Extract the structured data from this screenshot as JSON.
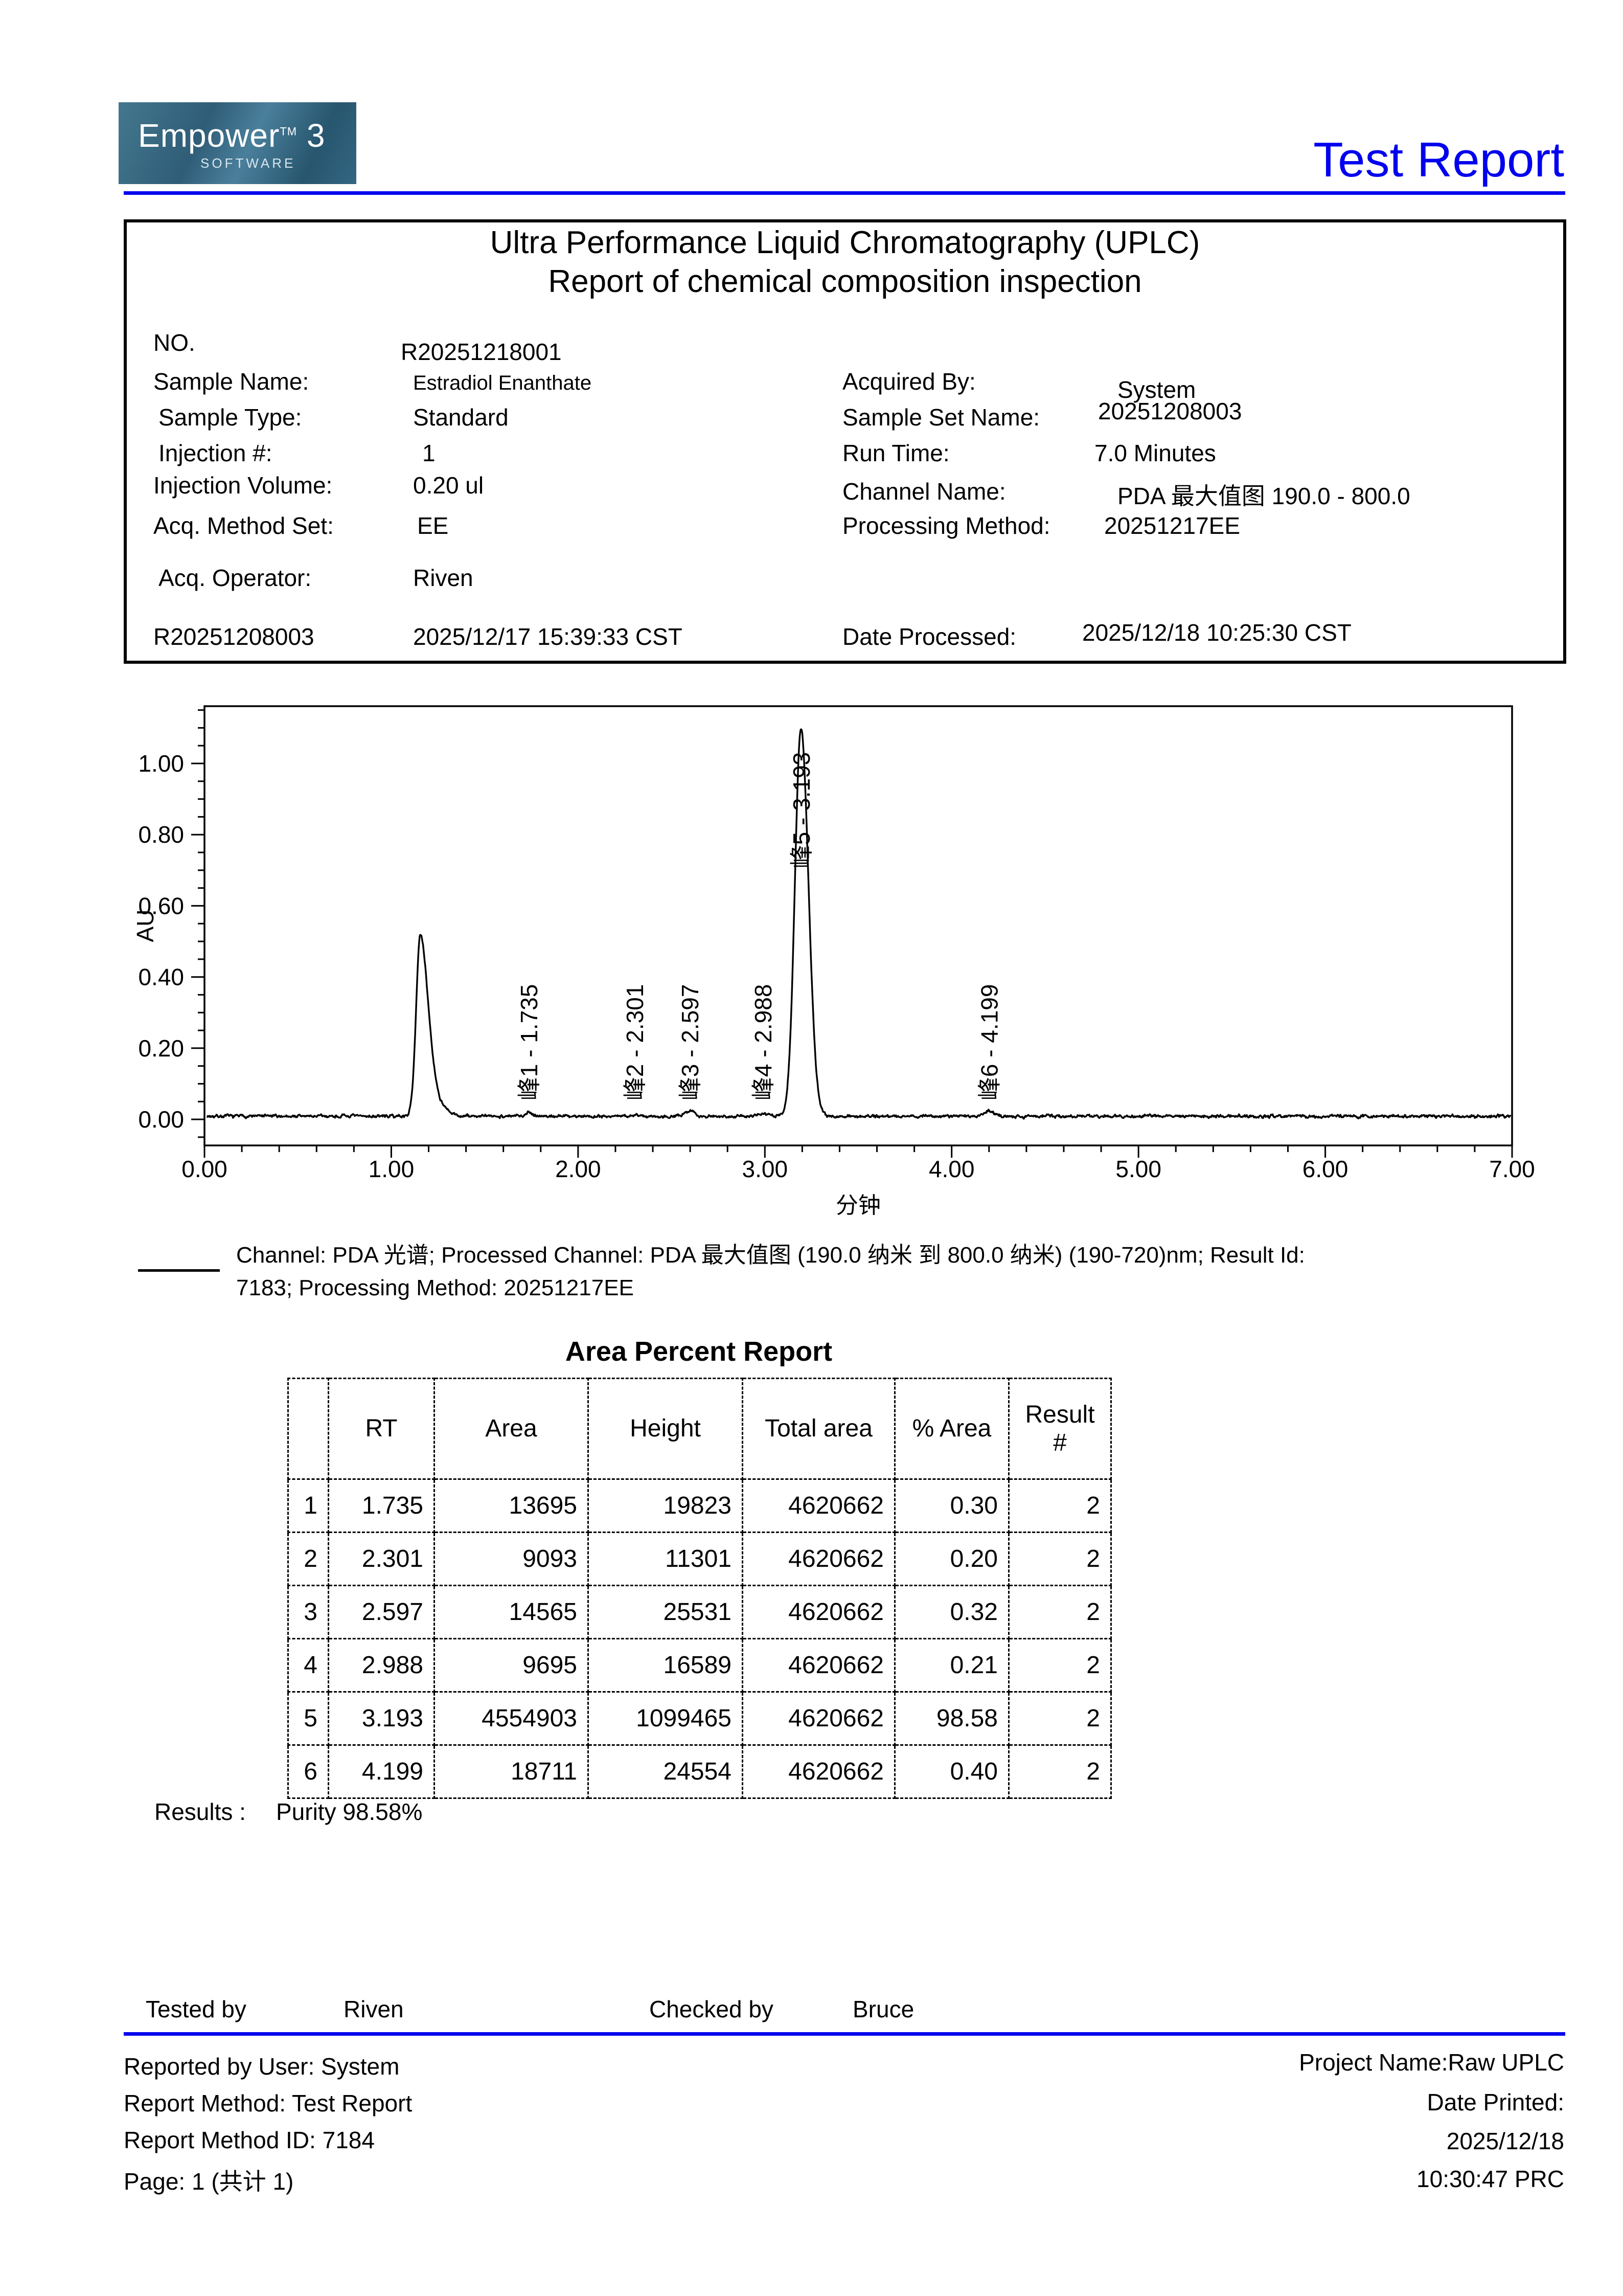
{
  "header": {
    "logo_brand": "Empower",
    "logo_tm": "TM",
    "logo_version": "3",
    "logo_subtitle": "SOFTWARE",
    "report_title": "Test Report"
  },
  "info_box": {
    "title_line1": "Ultra Performance Liquid Chromatography (UPLC)",
    "title_line2": "Report of chemical composition inspection",
    "left": [
      {
        "label": "NO.",
        "value": "R20251218001"
      },
      {
        "label": "Sample Name:",
        "value": "Estradiol Enanthate"
      },
      {
        "label": "Sample Type:",
        "value": "Standard"
      },
      {
        "label": "Injection #:",
        "value": "1"
      },
      {
        "label": "Injection Volume:",
        "value": "0.20 ul"
      },
      {
        "label": "Acq. Method Set:",
        "value": "EE"
      },
      {
        "label": "Acq. Operator:",
        "value": "Riven"
      },
      {
        "label": "R20251208003",
        "value": "2025/12/17 15:39:33 CST"
      }
    ],
    "right": [
      {
        "label": "Acquired By:",
        "value": "System"
      },
      {
        "label": "Sample Set Name:",
        "value": "20251208003"
      },
      {
        "label": "Run Time:",
        "value": "7.0 Minutes"
      },
      {
        "label": "Channel Name:",
        "value": "PDA 最大值图 190.0 - 800.0"
      },
      {
        "label": "Processing Method:",
        "value": "20251217EE"
      },
      {
        "label": "Date Processed:",
        "value": "2025/12/18 10:25:30 CST"
      }
    ]
  },
  "chart_data": {
    "type": "line",
    "title": "",
    "xlabel": "分钟",
    "ylabel": "AU",
    "xlim": [
      0.0,
      7.0
    ],
    "ylim": [
      -0.073,
      1.161
    ],
    "grid": false,
    "legend_position": "none",
    "x_major_ticks": [
      0,
      1,
      2,
      3,
      4,
      5,
      6,
      7
    ],
    "x_tick_labels": [
      "0.00",
      "1.00",
      "2.00",
      "3.00",
      "4.00",
      "5.00",
      "6.00",
      "7.00"
    ],
    "x_minor_step": 0.2,
    "y_major_ticks": [
      0.0,
      0.2,
      0.4,
      0.6,
      0.8,
      1.0
    ],
    "y_tick_labels": [
      "0.00",
      "0.20",
      "0.40",
      "0.60",
      "0.80",
      "1.00"
    ],
    "y_minor_step": 0.05,
    "baseline_au": 0.009,
    "noise_amplitude_au": 0.005,
    "unlabeled_peaks": [
      {
        "rt": 1.155,
        "height_au": 0.515,
        "sigma_l": 0.022,
        "sigma_r": 0.042,
        "note": "solvent front, not integrated"
      },
      {
        "rt": 1.235,
        "height_au": 0.045,
        "sigma_l": 0.03,
        "sigma_r": 0.05,
        "note": "solvent front shoulder"
      }
    ],
    "peaks": [
      {
        "label": "峰1 - 1.735",
        "rt": 1.735,
        "height_au": 0.0198,
        "sigma_l": 0.02,
        "sigma_r": 0.024,
        "label_base_au": 0.053
      },
      {
        "label": "峰2 - 2.301",
        "rt": 2.301,
        "height_au": 0.0113,
        "sigma_l": 0.02,
        "sigma_r": 0.024,
        "label_base_au": 0.053
      },
      {
        "label": "峰3 - 2.597",
        "rt": 2.597,
        "height_au": 0.0255,
        "sigma_l": 0.02,
        "sigma_r": 0.024,
        "label_base_au": 0.053
      },
      {
        "label": "峰4 - 2.988",
        "rt": 2.988,
        "height_au": 0.0166,
        "sigma_l": 0.02,
        "sigma_r": 0.024,
        "label_base_au": 0.053
      },
      {
        "label": "峰5 - 3.193",
        "rt": 3.193,
        "height_au": 1.0995,
        "sigma_l": 0.032,
        "sigma_r": 0.04,
        "label_base_au": 0.705
      },
      {
        "label": "峰6 - 4.199",
        "rt": 4.199,
        "height_au": 0.0246,
        "sigma_l": 0.02,
        "sigma_r": 0.024,
        "label_base_au": 0.053
      }
    ]
  },
  "caption": {
    "line1": "Channel: PDA 光谱;   Processed Channel:  PDA 最大值图 (190.0 纳米 到 800.0 纳米) (190-720)nm;   Result Id:",
    "line2": "7183;   Processing Method:  20251217EE"
  },
  "area_report": {
    "title": "Area Percent Report",
    "columns": [
      "",
      "RT",
      "Area",
      "Height",
      "Total area",
      "% Area",
      "Result\n#"
    ],
    "rows": [
      [
        "1",
        "1.735",
        "13695",
        "19823",
        "4620662",
        "0.30",
        "2"
      ],
      [
        "2",
        "2.301",
        "9093",
        "11301",
        "4620662",
        "0.20",
        "2"
      ],
      [
        "3",
        "2.597",
        "14565",
        "25531",
        "4620662",
        "0.32",
        "2"
      ],
      [
        "4",
        "2.988",
        "9695",
        "16589",
        "4620662",
        "0.21",
        "2"
      ],
      [
        "5",
        "3.193",
        "4554903",
        "1099465",
        "4620662",
        "98.58",
        "2"
      ],
      [
        "6",
        "4.199",
        "18711",
        "24554",
        "4620662",
        "0.40",
        "2"
      ]
    ]
  },
  "results": {
    "label": "Results :",
    "value": "Purity 98.58%"
  },
  "signoff": {
    "tested_by_label": "Tested by",
    "tested_by_value": "Riven",
    "checked_by_label": "Checked by",
    "checked_by_value": "Bruce"
  },
  "footer": {
    "left": [
      "Reported by User:  System",
      "Report Method:  Test Report",
      "Report Method ID:  7184",
      "Page: 1 (共计 1)"
    ],
    "right": [
      "Project Name:Raw  UPLC",
      "Date Printed:",
      "2025/12/18",
      "10:30:47 PRC"
    ]
  },
  "colors": {
    "accent_blue": "#0000ee",
    "logo_teal_dark": "#2f5d77",
    "logo_teal_light": "#4a7f9b",
    "trace_black": "#000000"
  }
}
